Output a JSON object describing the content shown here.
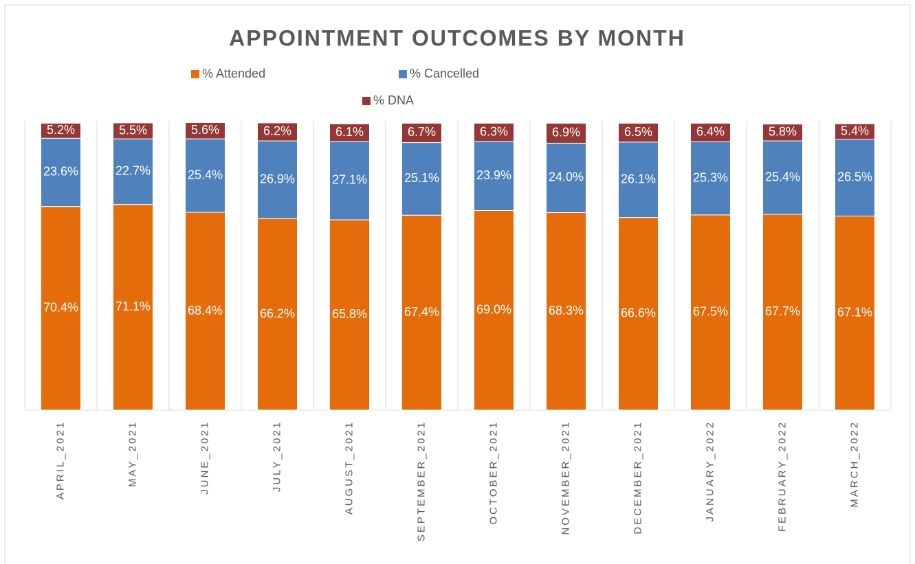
{
  "chart_data": {
    "type": "stacked_bar",
    "title": "APPOINTMENT OUTCOMES BY MONTH",
    "categories": [
      "APRIL_2021",
      "MAY_2021",
      "JUNE_2021",
      "JULY_2021",
      "AUGUST_2021",
      "SEPTEMBER_2021",
      "OCTOBER_2021",
      "NOVEMBER_2021",
      "DECEMBER_2021",
      "JANUARY_2022",
      "FEBRUARY_2022",
      "MARCH_2022"
    ],
    "series": [
      {
        "name": "% Attended",
        "color": "#e46c0a",
        "values": [
          70.4,
          71.1,
          68.4,
          66.2,
          65.8,
          67.4,
          69.0,
          68.3,
          66.6,
          67.5,
          67.7,
          67.1
        ],
        "value_labels": [
          "70.4%",
          "71.1%",
          "68.4%",
          "66.2%",
          "65.8%",
          "67.4%",
          "69.0%",
          "68.3%",
          "66.6%",
          "67.5%",
          "67.7%",
          "67.1%"
        ]
      },
      {
        "name": "% Cancelled",
        "color": "#4f81bd",
        "values": [
          23.6,
          22.7,
          25.4,
          26.9,
          27.1,
          25.1,
          23.9,
          24.0,
          26.1,
          25.3,
          25.4,
          26.5
        ],
        "value_labels": [
          "23.6%",
          "22.7%",
          "25.4%",
          "26.9%",
          "27.1%",
          "25.1%",
          "23.9%",
          "24.0%",
          "26.1%",
          "25.3%",
          "25.4%",
          "26.5%"
        ]
      },
      {
        "name": "% DNA",
        "color": "#953735",
        "values": [
          5.2,
          5.5,
          5.6,
          6.2,
          6.1,
          6.7,
          6.3,
          6.9,
          6.5,
          6.4,
          5.8,
          5.4
        ],
        "value_labels": [
          "5.2%",
          "5.5%",
          "5.6%",
          "6.2%",
          "6.1%",
          "6.7%",
          "6.3%",
          "6.9%",
          "6.5%",
          "6.4%",
          "5.8%",
          "5.4%"
        ]
      }
    ],
    "ylim": [
      0,
      100
    ],
    "grid": true
  }
}
